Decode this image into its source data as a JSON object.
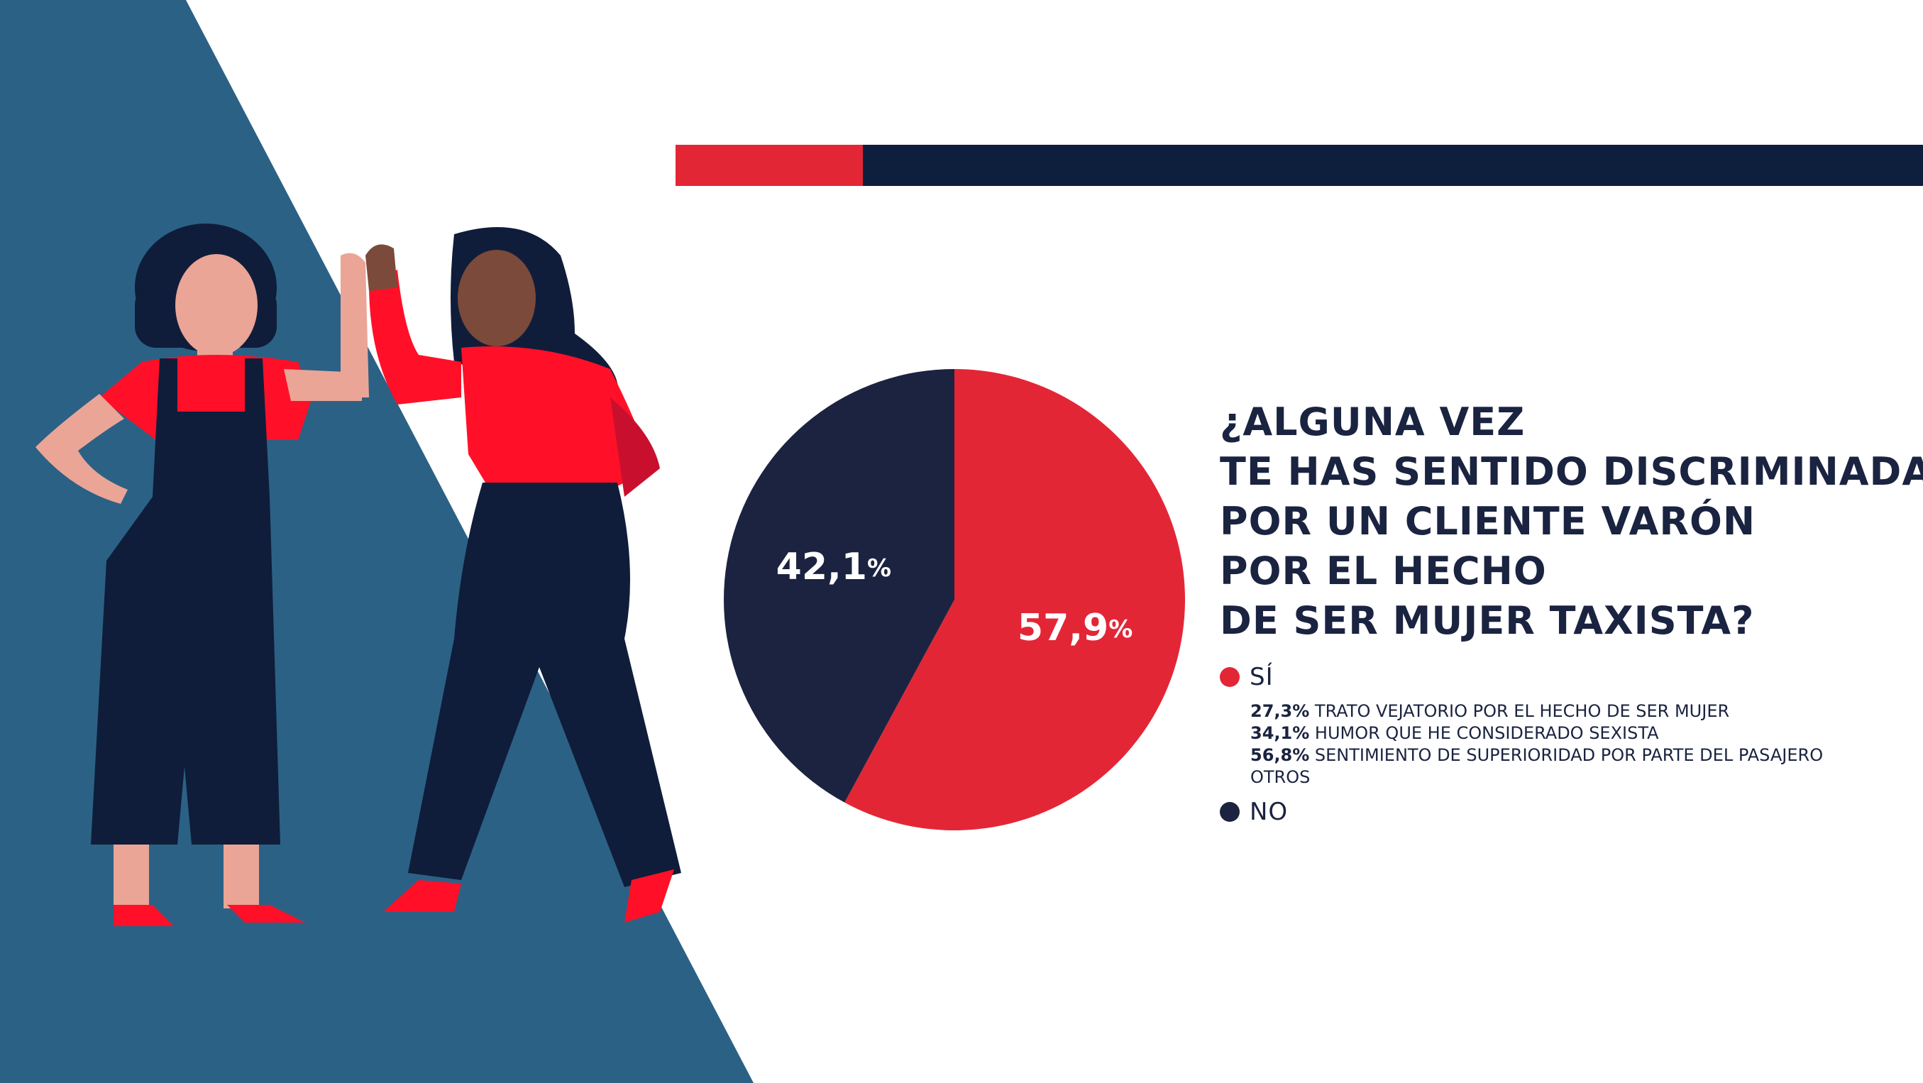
{
  "colors": {
    "background": "#ffffff",
    "triangle_blue": "#2b6185",
    "accent_red": "#e32636",
    "navy": "#1b2340",
    "header_navy": "#0d1f3d",
    "text": "#1a2340"
  },
  "header_bar": {
    "segments": [
      "red",
      "navy"
    ]
  },
  "question": {
    "lines": [
      "¿ALGUNA VEZ",
      "TE HAS SENTIDO DISCRIMINADA",
      "POR UN CLIENTE VARÓN",
      "POR EL HECHO",
      "DE SER MUJER TAXISTA?"
    ]
  },
  "chart_data": {
    "type": "pie",
    "slices": [
      {
        "label": "SÍ",
        "value": 57.9,
        "display": "57,9",
        "color": "#e32636"
      },
      {
        "label": "NO",
        "value": 42.1,
        "display": "42,1",
        "color": "#1b2340"
      }
    ],
    "percent_sign": "%",
    "legend_placement": "right"
  },
  "legend": {
    "si": {
      "label": "SÍ",
      "color": "#e32636"
    },
    "no": {
      "label": "NO",
      "color": "#1b2340"
    }
  },
  "details": [
    {
      "pct": "27,3%",
      "text": "TRATO VEJATORIO POR EL HECHO DE SER MUJER"
    },
    {
      "pct": "34,1%",
      "text": "HUMOR QUE HE CONSIDERADO SEXISTA"
    },
    {
      "pct": "56,8%",
      "text": "SENTIMIENTO DE SUPERIORIDAD POR PARTE DEL PASAJERO"
    },
    {
      "pct": "",
      "text": "OTROS"
    }
  ],
  "illustration": {
    "icon": "two-women-high-five-illustration"
  }
}
